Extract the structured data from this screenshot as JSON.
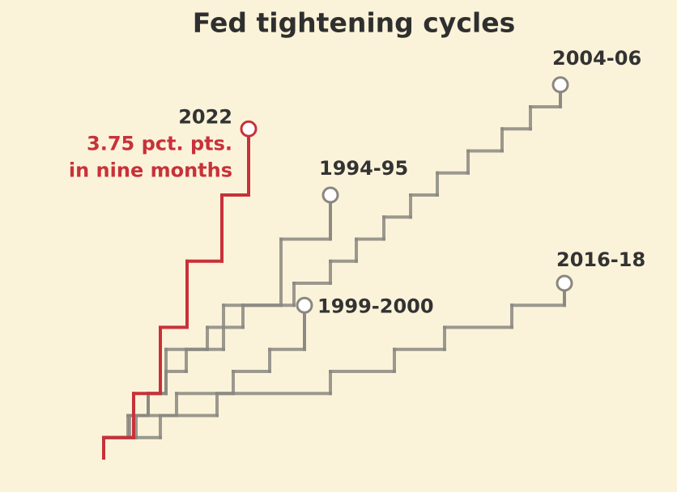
{
  "chart_data": {
    "type": "step-line",
    "title": "Fed tightening cycles",
    "xlim": [
      0,
      35
    ],
    "ylim": [
      0,
      5
    ],
    "series": [
      {
        "name": "1994-95",
        "color": "#8a8780",
        "x": [
          0,
          1.5,
          2.75,
          3.85,
          7.4,
          10.95,
          14
        ],
        "values": [
          0.25,
          0.5,
          0.75,
          1.25,
          1.75,
          2.5,
          3.0
        ]
      },
      {
        "name": "1999-2000",
        "color": "#8a8780",
        "x": [
          0,
          2,
          4.5,
          8,
          10.25,
          12.4
        ],
        "values": [
          0.25,
          0.5,
          0.75,
          1.0,
          1.25,
          1.75
        ]
      },
      {
        "name": "2004-06",
        "color": "#8a8780",
        "x": [
          0,
          1.6,
          2.75,
          3.85,
          5.1,
          6.4,
          8.6,
          11.75,
          14,
          15.6,
          17.3,
          18.95,
          20.6,
          22.5,
          24.6,
          26.35,
          28.2
        ],
        "values": [
          0.25,
          0.5,
          0.75,
          1.0,
          1.25,
          1.5,
          1.75,
          2.0,
          2.25,
          2.5,
          2.75,
          3.0,
          3.25,
          3.5,
          3.75,
          4.0,
          4.25
        ]
      },
      {
        "name": "2016-18",
        "color": "#8a8780",
        "x": [
          0,
          3.5,
          7,
          14,
          17.95,
          21.05,
          25.2,
          28.45
        ],
        "values": [
          0.25,
          0.5,
          0.75,
          1.0,
          1.25,
          1.5,
          1.75,
          2.0
        ]
      },
      {
        "name": "2022",
        "color": "#c8313a",
        "x": [
          0,
          1.85,
          3.5,
          5.15,
          7.3,
          8.95
        ],
        "values": [
          0.25,
          0.75,
          1.5,
          2.25,
          3.0,
          3.75
        ],
        "annotation": [
          "3.75 pct. pts.",
          "in nine months"
        ]
      }
    ]
  }
}
